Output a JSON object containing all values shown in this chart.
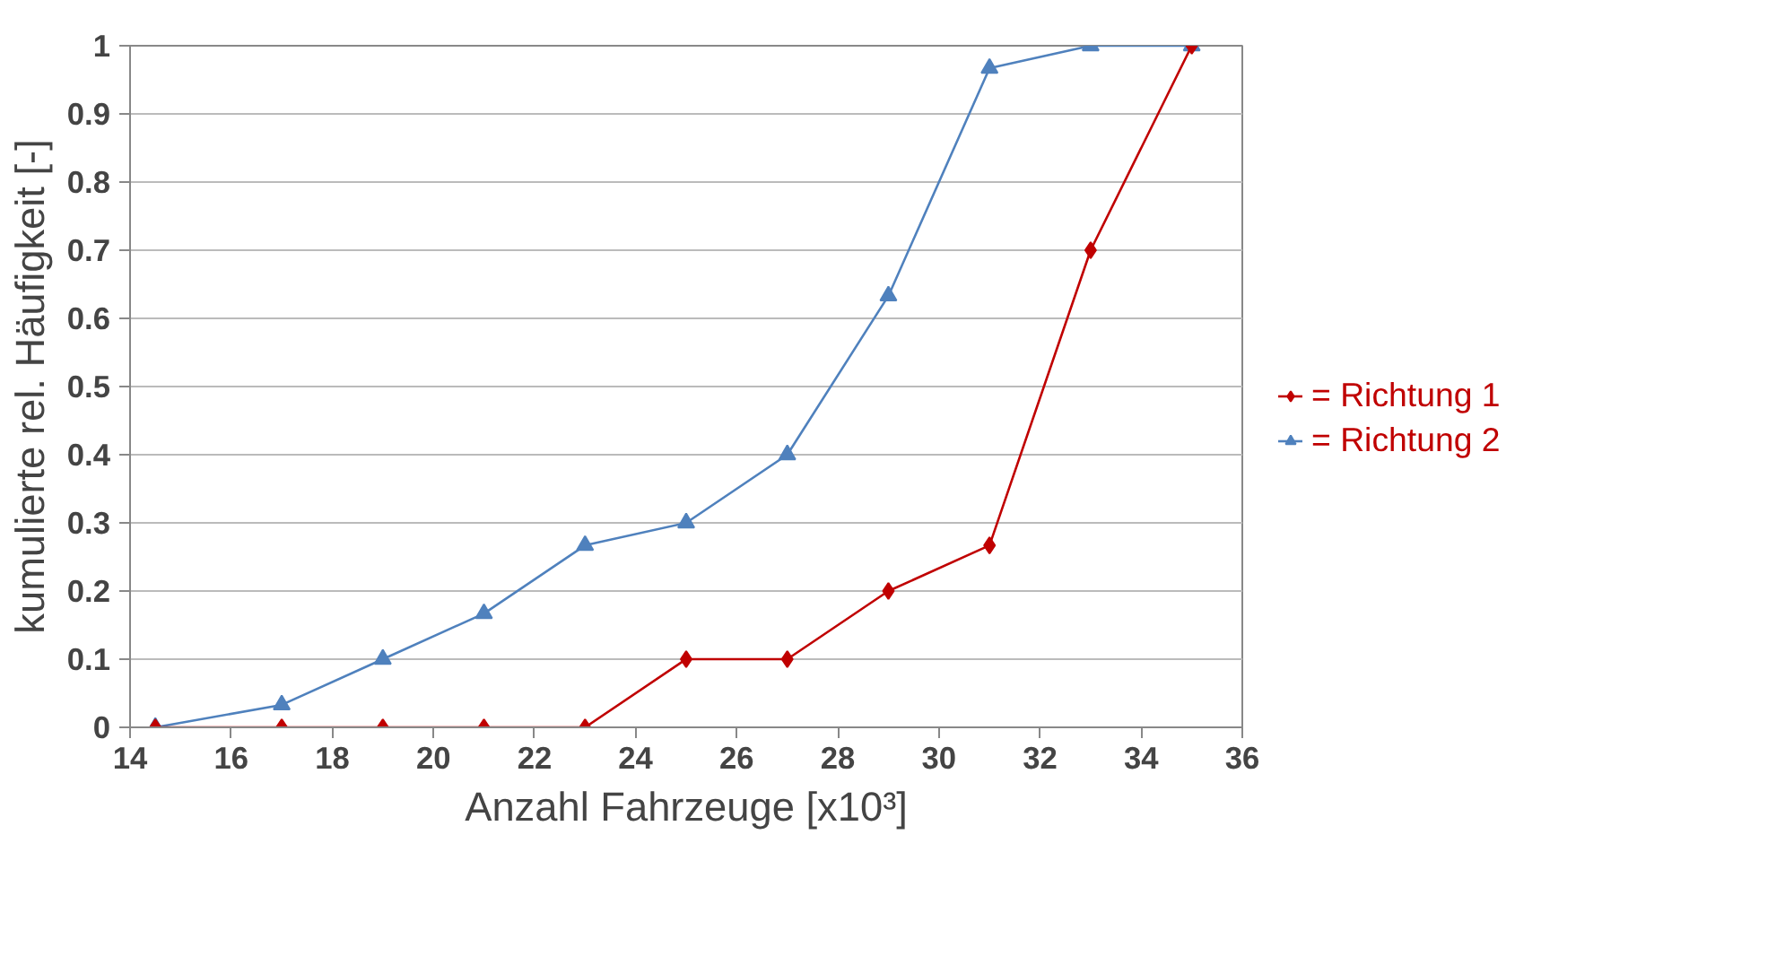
{
  "chart_data": {
    "type": "line",
    "xlabel": "Anzahl Fahrzeuge [x10³]",
    "ylabel": "kumulierte rel. Häufigkeit [-]",
    "x": [
      14.5,
      17,
      19,
      21,
      23,
      25,
      27,
      29,
      31,
      33,
      35
    ],
    "series": [
      {
        "name": "= Richtung 1",
        "color": "#c00000",
        "marker": "diamond",
        "values": [
          0,
          0,
          0,
          0,
          0,
          0.1,
          0.1,
          0.2,
          0.267,
          0.7,
          1
        ]
      },
      {
        "name": "= Richtung 2",
        "color": "#4f81bd",
        "marker": "triangle",
        "values": [
          0,
          0.033,
          0.1,
          0.167,
          0.267,
          0.3,
          0.4,
          0.633,
          0.967,
          1,
          1
        ]
      }
    ],
    "xlim": [
      14,
      36
    ],
    "xticks": [
      14,
      16,
      18,
      20,
      22,
      24,
      26,
      28,
      30,
      32,
      34,
      36
    ],
    "ylim": [
      0,
      1
    ],
    "yticks": [
      0,
      0.1,
      0.2,
      0.3,
      0.4,
      0.5,
      0.6,
      0.7,
      0.8,
      0.9,
      1
    ],
    "grid": "y",
    "legend": "right",
    "line_style": "solid"
  }
}
